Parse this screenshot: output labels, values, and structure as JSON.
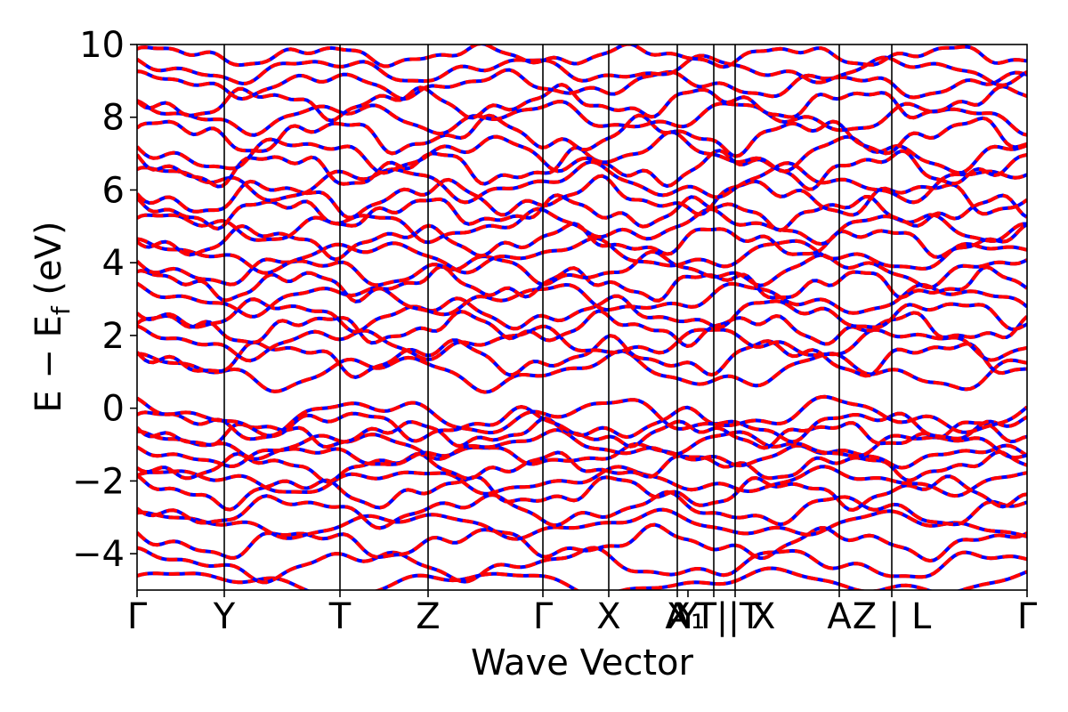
{
  "chart_data": {
    "type": "line",
    "title": "",
    "xlabel": "Wave Vector",
    "ylabel": "E − E",
    "ylabel_subscript": "f",
    "ylabel_unit": " (eV)",
    "ylim": [
      -5,
      10
    ],
    "y_ticks": [
      {
        "value": -4,
        "label": "−4"
      },
      {
        "value": -2,
        "label": "−2"
      },
      {
        "value": 0,
        "label": "0"
      },
      {
        "value": 2,
        "label": "2"
      },
      {
        "value": 4,
        "label": "4"
      },
      {
        "value": 6,
        "label": "6"
      },
      {
        "value": 8,
        "label": "8"
      },
      {
        "value": 10,
        "label": "10"
      }
    ],
    "x_range": [
      0,
      1
    ],
    "kpath_ticks": [
      {
        "k": 0.0,
        "label": "Γ"
      },
      {
        "k": 0.098,
        "label": "Y"
      },
      {
        "k": 0.228,
        "label": "T"
      },
      {
        "k": 0.327,
        "label": "Z"
      },
      {
        "k": 0.456,
        "label": "Γ"
      },
      {
        "k": 0.53,
        "label": "X"
      },
      {
        "k": 0.607,
        "label": "A"
      },
      {
        "k": 0.619,
        "label": "Y"
      },
      {
        "k": 0.648,
        "label": "X₁ | T"
      },
      {
        "k": 0.672,
        "label": "T | X"
      },
      {
        "k": 0.789,
        "label": "A"
      },
      {
        "k": 0.848,
        "label": "Z | L"
      },
      {
        "k": 1.0,
        "label": "Γ"
      }
    ],
    "kpath_lines": [
      0.098,
      0.228,
      0.327,
      0.456,
      0.53,
      0.607,
      0.648,
      0.672,
      0.789,
      0.848
    ],
    "series": [
      {
        "name": "",
        "color": "#0000ff",
        "style": "solid"
      },
      {
        "name": "",
        "color": "#ff0000",
        "style": "dashed"
      }
    ],
    "bands_approx": [
      {
        "base": -4.8,
        "amp": 0.25,
        "freq": 3.1,
        "phase": 0.3
      },
      {
        "base": -4.3,
        "amp": 0.3,
        "freq": 4.2,
        "phase": 1.1
      },
      {
        "base": -3.7,
        "amp": 0.3,
        "freq": 5.0,
        "phase": 2.0
      },
      {
        "base": -3.2,
        "amp": 0.25,
        "freq": 3.7,
        "phase": 0.7
      },
      {
        "base": -2.8,
        "amp": 0.3,
        "freq": 4.8,
        "phase": 2.6
      },
      {
        "base": -2.3,
        "amp": 0.3,
        "freq": 5.6,
        "phase": 1.4
      },
      {
        "base": -2.0,
        "amp": 0.25,
        "freq": 4.1,
        "phase": 0.2
      },
      {
        "base": -1.6,
        "amp": 0.25,
        "freq": 6.0,
        "phase": 2.9
      },
      {
        "base": -1.3,
        "amp": 0.2,
        "freq": 5.2,
        "phase": 1.8
      },
      {
        "base": -1.0,
        "amp": 0.25,
        "freq": 4.6,
        "phase": 0.9
      },
      {
        "base": -0.7,
        "amp": 0.25,
        "freq": 6.3,
        "phase": 2.2
      },
      {
        "base": -0.45,
        "amp": 0.3,
        "freq": 5.1,
        "phase": 0.4
      },
      {
        "base": -0.2,
        "amp": 0.35,
        "freq": 3.8,
        "phase": 1.6
      },
      {
        "base": 1.0,
        "amp": 0.35,
        "freq": 4.0,
        "phase": 0.8
      },
      {
        "base": 1.4,
        "amp": 0.35,
        "freq": 5.4,
        "phase": 2.4
      },
      {
        "base": 1.8,
        "amp": 0.3,
        "freq": 4.7,
        "phase": 1.2
      },
      {
        "base": 2.2,
        "amp": 0.3,
        "freq": 6.1,
        "phase": 0.1
      },
      {
        "base": 2.6,
        "amp": 0.3,
        "freq": 5.3,
        "phase": 2.7
      },
      {
        "base": 3.0,
        "amp": 0.3,
        "freq": 4.4,
        "phase": 1.5
      },
      {
        "base": 3.4,
        "amp": 0.3,
        "freq": 6.4,
        "phase": 0.6
      },
      {
        "base": 3.8,
        "amp": 0.3,
        "freq": 5.0,
        "phase": 2.1
      },
      {
        "base": 4.2,
        "amp": 0.3,
        "freq": 4.2,
        "phase": 1.0
      },
      {
        "base": 4.6,
        "amp": 0.3,
        "freq": 5.8,
        "phase": 2.8
      },
      {
        "base": 5.0,
        "amp": 0.3,
        "freq": 4.9,
        "phase": 0.3
      },
      {
        "base": 5.4,
        "amp": 0.3,
        "freq": 6.2,
        "phase": 1.7
      },
      {
        "base": 5.8,
        "amp": 0.35,
        "freq": 5.5,
        "phase": 2.5
      },
      {
        "base": 6.2,
        "amp": 0.35,
        "freq": 4.3,
        "phase": 0.5
      },
      {
        "base": 6.6,
        "amp": 0.35,
        "freq": 5.9,
        "phase": 1.9
      },
      {
        "base": 7.0,
        "amp": 0.35,
        "freq": 4.8,
        "phase": 2.3
      },
      {
        "base": 7.5,
        "amp": 0.35,
        "freq": 5.6,
        "phase": 0.2
      },
      {
        "base": 8.0,
        "amp": 0.3,
        "freq": 4.5,
        "phase": 1.3
      },
      {
        "base": 8.4,
        "amp": 0.3,
        "freq": 6.0,
        "phase": 2.6
      },
      {
        "base": 8.9,
        "amp": 0.25,
        "freq": 5.2,
        "phase": 0.9
      },
      {
        "base": 9.3,
        "amp": 0.25,
        "freq": 4.6,
        "phase": 1.8
      },
      {
        "base": 9.7,
        "amp": 0.2,
        "freq": 5.7,
        "phase": 0.4
      }
    ]
  }
}
